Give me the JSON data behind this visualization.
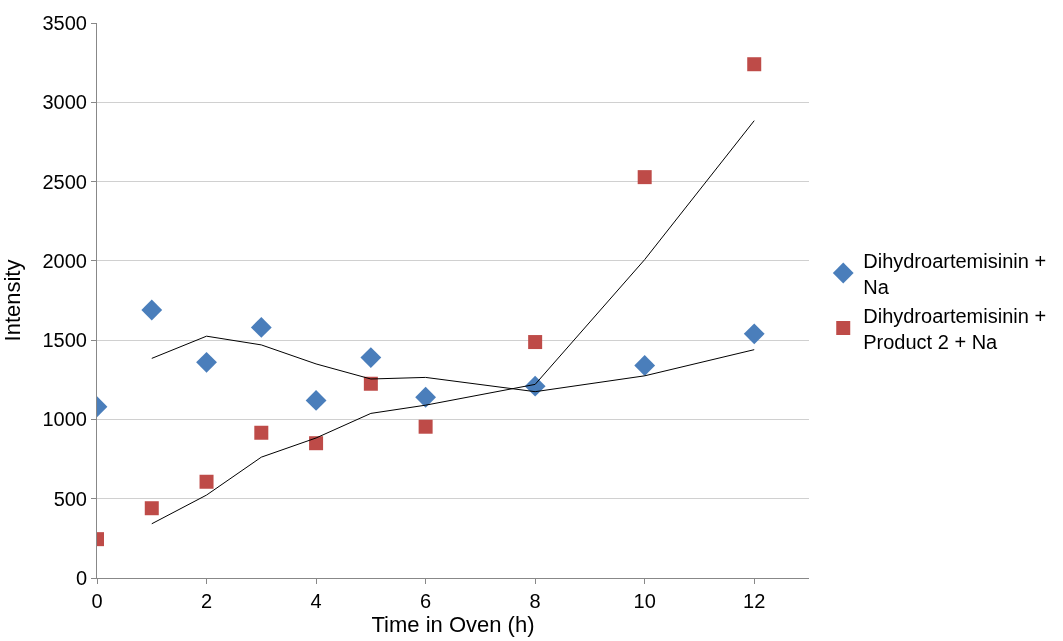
{
  "chart_data": {
    "type": "scatter",
    "xlabel": "Time in Oven (h)",
    "ylabel": "Intensity",
    "series": [
      {
        "name": "Dihydroartemisinin + Na",
        "color": "#4a7ebb",
        "marker": "diamond",
        "x": [
          0,
          1,
          2,
          3,
          4,
          5,
          6,
          8,
          10,
          12
        ],
        "values": [
          1080,
          1690,
          1360,
          1580,
          1120,
          1390,
          1140,
          1210,
          1340,
          1540
        ]
      },
      {
        "name": "Dihydroartemisinin + Product 2 + Na",
        "color": "#be4b48",
        "marker": "square",
        "x": [
          0,
          1,
          2,
          3,
          4,
          5,
          6,
          8,
          10,
          12
        ],
        "values": [
          245,
          440,
          607,
          916,
          850,
          1225,
          954,
          1488,
          2528,
          3240
        ]
      },
      {
        "type": "line",
        "color": "#000000",
        "marker": "none",
        "x": [
          1,
          2,
          3,
          4,
          5,
          6,
          8,
          10,
          12
        ],
        "values": [
          1385,
          1525,
          1470,
          1350,
          1255,
          1265,
          1175,
          1275,
          1440
        ]
      },
      {
        "type": "line",
        "color": "#000000",
        "marker": "none",
        "x": [
          1,
          2,
          3,
          4,
          5,
          6,
          8,
          10,
          12
        ],
        "values": [
          342,
          523,
          762,
          883,
          1038,
          1090,
          1221,
          2008,
          2884
        ]
      }
    ],
    "xlim": [
      0,
      13
    ],
    "xticks": [
      0,
      2,
      4,
      6,
      8,
      10,
      12
    ],
    "ylim": [
      0,
      3500
    ],
    "yticks": [
      0,
      500,
      1000,
      1500,
      2000,
      2500,
      3000,
      3500
    ],
    "grid": "y",
    "legend": "right"
  }
}
